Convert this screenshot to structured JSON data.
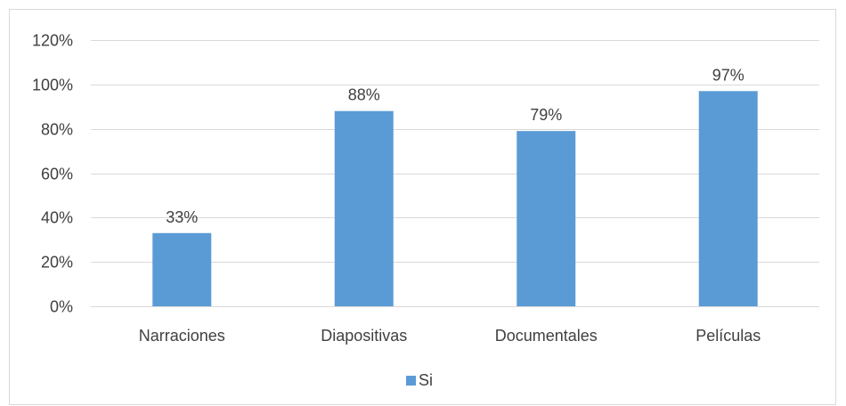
{
  "chart_data": {
    "type": "bar",
    "categories": [
      "Narraciones",
      "Diapositivas",
      "Documentales",
      "Películas"
    ],
    "series": [
      {
        "name": "Si",
        "values": [
          33,
          88,
          79,
          97
        ],
        "data_labels": [
          "33%",
          "88%",
          "79%",
          "97%"
        ],
        "color": "#5b9bd5"
      }
    ],
    "title": "",
    "xlabel": "",
    "ylabel": "",
    "ylim": [
      0,
      120
    ],
    "y_ticks": [
      0,
      20,
      40,
      60,
      80,
      100,
      120
    ],
    "y_tick_labels": [
      "0%",
      "20%",
      "40%",
      "60%",
      "80%",
      "100%",
      "120%"
    ],
    "grid": true,
    "legend_position": "bottom"
  }
}
